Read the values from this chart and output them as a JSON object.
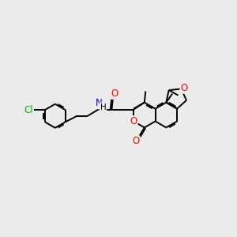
{
  "bg_color": "#ebebeb",
  "bond_color": "#000000",
  "bond_width": 1.4,
  "atom_colors": {
    "O": "#ff0000",
    "N": "#0000ff",
    "Cl": "#00bb00",
    "C": "#000000"
  },
  "font_size": 8.5
}
